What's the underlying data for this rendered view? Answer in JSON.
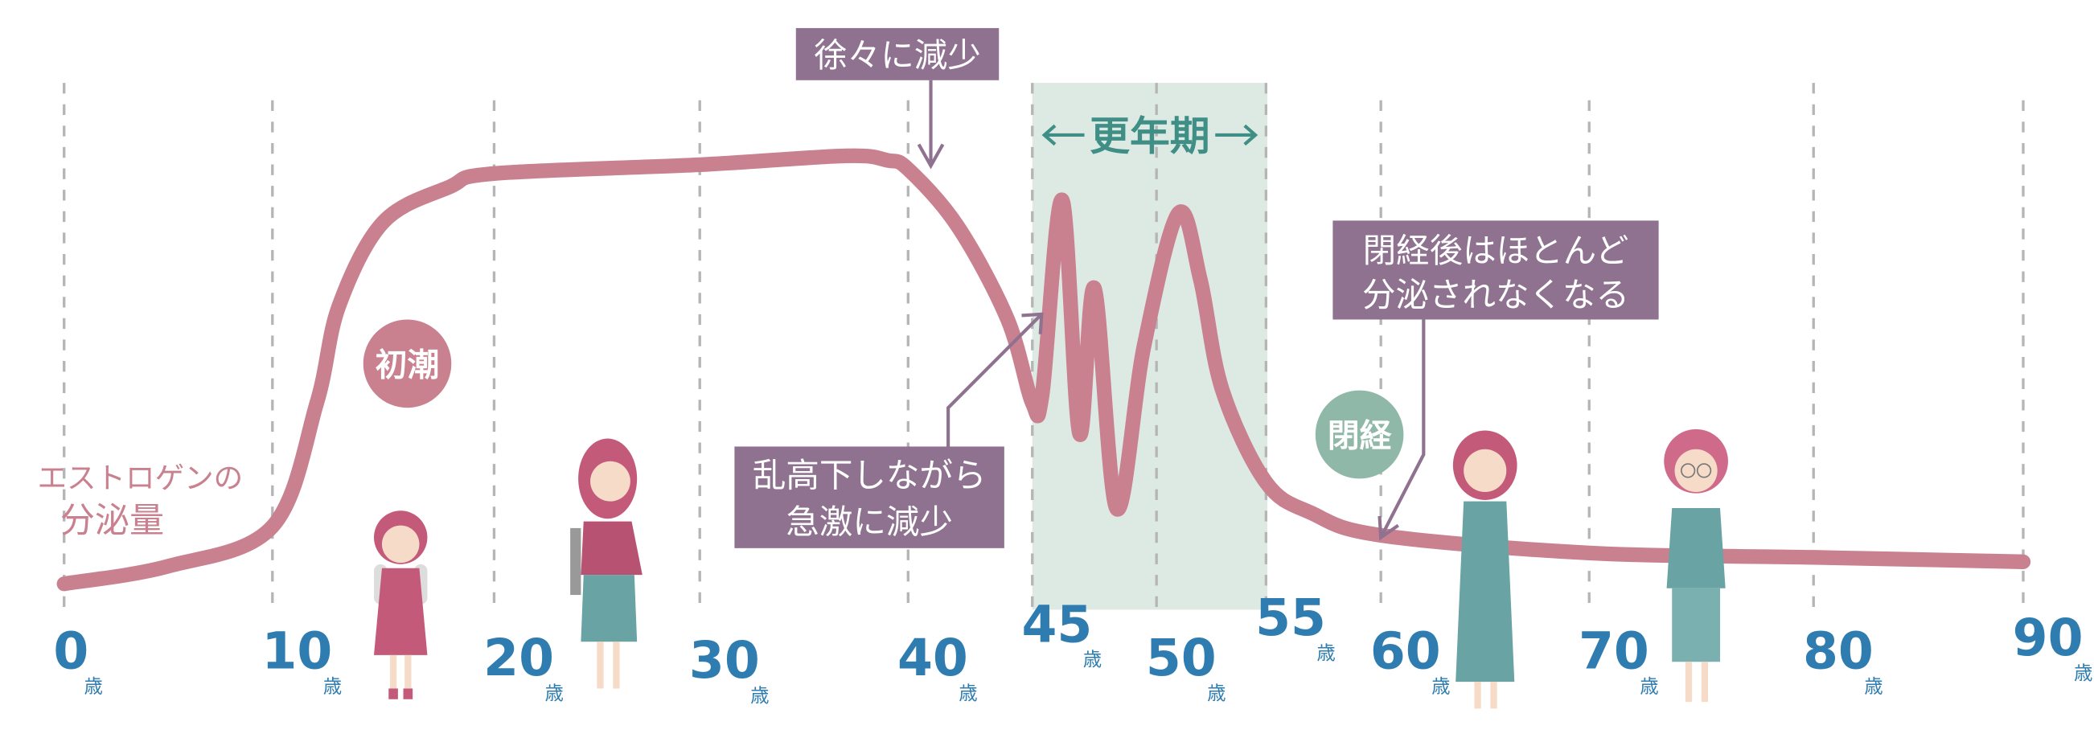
{
  "chart_data": {
    "type": "line",
    "title": "",
    "ylabel": "エストロゲンの分泌量",
    "y_label_lines": [
      "エストロゲンの",
      "分泌量"
    ],
    "xlabel": "",
    "x_unit": "歳",
    "x_ticks": [
      0,
      10,
      20,
      30,
      40,
      45,
      50,
      55,
      60,
      70,
      80,
      90
    ],
    "grid": "vertical dashed",
    "y_scale_note": "relative",
    "series": [
      {
        "color": "#c9808f",
        "points": [
          [
            0,
            1
          ],
          [
            5,
            5
          ],
          [
            10,
            14
          ],
          [
            12,
            42
          ],
          [
            13,
            64
          ],
          [
            15,
            83
          ],
          [
            18,
            91
          ],
          [
            20,
            94
          ],
          [
            30,
            96
          ],
          [
            37,
            98
          ],
          [
            39,
            97
          ],
          [
            40,
            95
          ],
          [
            42,
            82
          ],
          [
            44,
            61
          ],
          [
            45,
            42
          ],
          [
            45.4,
            44
          ],
          [
            46.2,
            88
          ],
          [
            46.9,
            35
          ],
          [
            47.5,
            68
          ],
          [
            48.4,
            18
          ],
          [
            49.5,
            55
          ],
          [
            51,
            85
          ],
          [
            52,
            70
          ],
          [
            53,
            45
          ],
          [
            55,
            24
          ],
          [
            57,
            17
          ],
          [
            60,
            12
          ],
          [
            70,
            8
          ],
          [
            80,
            7
          ],
          [
            90,
            6
          ]
        ]
      }
    ],
    "highlight_band": {
      "from": 45,
      "to": 55,
      "label": "更年期",
      "color": "#dde9e3",
      "label_color": "#3f8f86"
    },
    "annotations": [
      {
        "text_lines": [
          "徐々に減少"
        ],
        "points_to_age": 41,
        "color": "#8f7190"
      },
      {
        "text_lines": [
          "乱高下しながら",
          "急激に減少"
        ],
        "points_to_age": 45.5,
        "color": "#8f7190"
      },
      {
        "text_lines": [
          "閉経後はほとんど",
          "分泌されなくなる"
        ],
        "points_to_age": 59,
        "color": "#8f7190"
      }
    ],
    "badges": [
      {
        "text": "初潮",
        "age": 12,
        "color": "#c9808f"
      },
      {
        "text": "閉経",
        "age": 57,
        "color": "#8fb8a8"
      }
    ]
  },
  "colors": {
    "axis_text": "#2f7db0",
    "grid": "#b5b5b5",
    "figure_pink": "#c45a7a",
    "figure_teal": "#6aa3a3"
  }
}
